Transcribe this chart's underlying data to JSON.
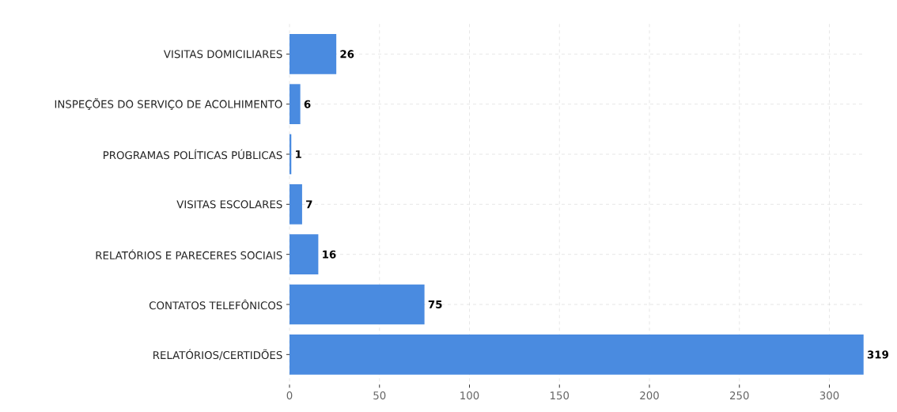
{
  "chart_data": {
    "type": "bar",
    "orientation": "horizontal",
    "categories": [
      "VISITAS DOMICILIARES",
      "INSPEÇÕES DO SERVIÇO DE ACOLHIMENTO",
      "PROGRAMAS POLÍTICAS PÚBLICAS",
      "VISITAS ESCOLARES",
      "RELATÓRIOS E PARECERES SOCIAIS",
      "CONTATOS TELEFÔNICOS",
      "RELATÓRIOS/CERTIDÕES"
    ],
    "values": [
      26,
      6,
      1,
      7,
      16,
      75,
      319
    ],
    "value_labels": [
      "26",
      "6",
      "1",
      "7",
      "16",
      "75",
      "319"
    ],
    "color": "#4a8be0",
    "xlim": [
      0,
      320
    ],
    "xticks": [
      0,
      50,
      100,
      150,
      200,
      250,
      300
    ],
    "grid": true
  }
}
